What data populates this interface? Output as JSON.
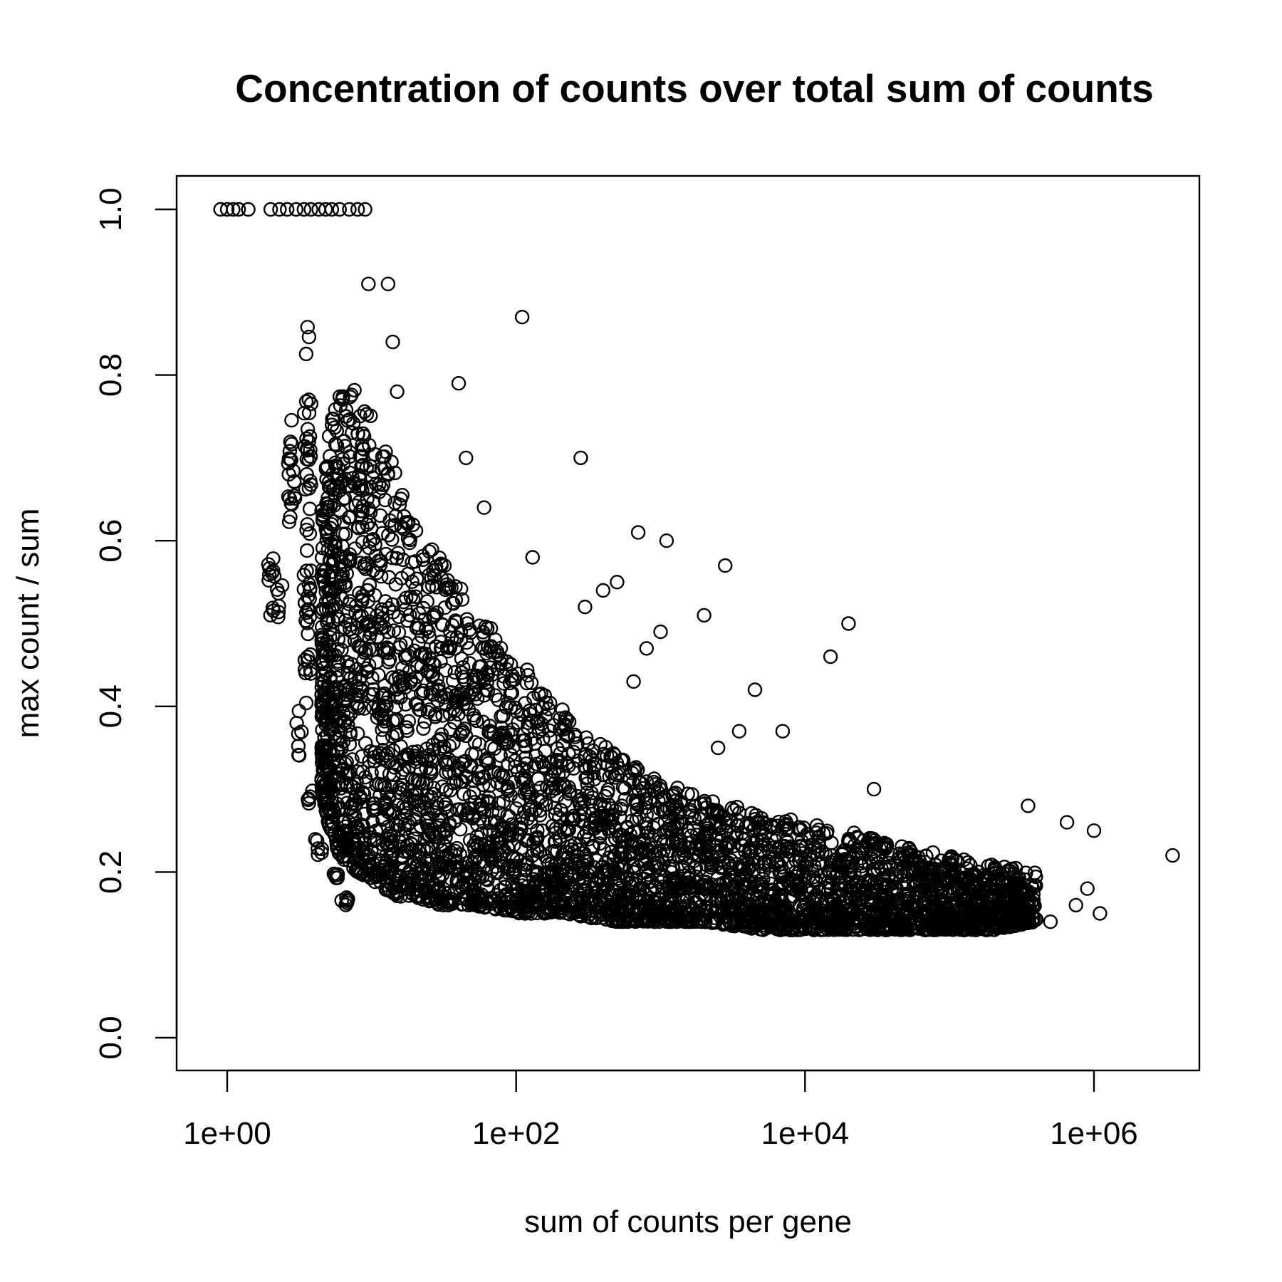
{
  "chart_data": {
    "type": "scatter",
    "title": "Concentration of counts over total sum of counts",
    "xlabel": "sum of counts per gene",
    "ylabel": "max count / sum",
    "x_scale": "log",
    "xlim": [
      0.5,
      5000000
    ],
    "ylim": [
      0,
      1
    ],
    "x_ticks": [
      1,
      100,
      10000,
      1000000
    ],
    "x_tick_labels": [
      "1e+00",
      "1e+02",
      "1e+04",
      "1e+06"
    ],
    "y_ticks": [
      0,
      0.2,
      0.4,
      0.6,
      0.8,
      1.0
    ],
    "y_tick_labels": [
      "0.0",
      "0.2",
      "0.4",
      "0.6",
      "0.8",
      "1.0"
    ],
    "grid": false,
    "legend": "none",
    "marker": "open-circle",
    "point_color": "#000000",
    "points_at_one": [
      [
        0.9,
        1.0
      ],
      [
        1.0,
        1.0
      ],
      [
        1.1,
        1.0
      ],
      [
        1.2,
        1.0
      ],
      [
        1.4,
        1.0
      ],
      [
        2.0,
        1.0
      ],
      [
        2.3,
        1.0
      ],
      [
        2.6,
        1.0
      ],
      [
        3.0,
        1.0
      ],
      [
        3.4,
        1.0
      ],
      [
        3.8,
        1.0
      ],
      [
        4.3,
        1.0
      ],
      [
        4.8,
        1.0
      ],
      [
        5.3,
        1.0
      ],
      [
        6.0,
        1.0
      ],
      [
        7.0,
        1.0
      ],
      [
        8.0,
        1.0
      ],
      [
        9.0,
        1.0
      ]
    ],
    "outliers": [
      [
        9.5,
        0.91
      ],
      [
        13,
        0.91
      ],
      [
        110,
        0.87
      ],
      [
        14,
        0.84
      ],
      [
        15,
        0.78
      ],
      [
        40,
        0.79
      ],
      [
        45,
        0.7
      ],
      [
        280,
        0.7
      ],
      [
        60,
        0.64
      ],
      [
        700,
        0.61
      ],
      [
        1100,
        0.6
      ],
      [
        2800,
        0.57
      ],
      [
        130,
        0.58
      ],
      [
        500,
        0.55
      ],
      [
        400,
        0.54
      ],
      [
        300,
        0.52
      ],
      [
        2000,
        0.51
      ],
      [
        20000,
        0.5
      ],
      [
        1000,
        0.49
      ],
      [
        15000,
        0.46
      ],
      [
        800,
        0.47
      ],
      [
        4500,
        0.42
      ],
      [
        650,
        0.43
      ],
      [
        3500,
        0.37
      ],
      [
        7000,
        0.37
      ],
      [
        2500,
        0.35
      ],
      [
        30000,
        0.3
      ],
      [
        350000,
        0.28
      ],
      [
        650000,
        0.26
      ],
      [
        1000000,
        0.25
      ],
      [
        1100000,
        0.15
      ],
      [
        3500000,
        0.22
      ],
      [
        750000,
        0.16
      ],
      [
        900000,
        0.18
      ],
      [
        500000,
        0.14
      ]
    ],
    "bands": [
      {
        "x": 2.0,
        "y_min": 0.5,
        "y_max": 0.59
      },
      {
        "x": 2.3,
        "y_min": 0.5,
        "y_max": 0.55
      },
      {
        "x": 2.8,
        "y_min": 0.58,
        "y_max": 0.75
      },
      {
        "x": 3.1,
        "y_min": 0.34,
        "y_max": 0.4
      },
      {
        "x": 3.6,
        "y_min": 0.4,
        "y_max": 0.86
      },
      {
        "x": 3.7,
        "y_min": 0.27,
        "y_max": 0.3
      },
      {
        "x": 4.3,
        "y_min": 0.22,
        "y_max": 0.24
      },
      {
        "x": 5.5,
        "y_min": 0.19,
        "y_max": 0.2
      },
      {
        "x": 6.5,
        "y_min": 0.16,
        "y_max": 0.17
      }
    ],
    "cloud": [
      [
        4.5,
        0.3,
        0.65
      ],
      [
        5,
        0.26,
        0.72
      ],
      [
        6,
        0.22,
        0.8
      ],
      [
        8,
        0.2,
        0.8
      ],
      [
        10,
        0.19,
        0.75
      ],
      [
        15,
        0.17,
        0.68
      ],
      [
        20,
        0.17,
        0.62
      ],
      [
        30,
        0.16,
        0.58
      ],
      [
        50,
        0.16,
        0.52
      ],
      [
        100,
        0.15,
        0.46
      ],
      [
        200,
        0.15,
        0.4
      ],
      [
        500,
        0.14,
        0.34
      ],
      [
        1000,
        0.14,
        0.31
      ],
      [
        2000,
        0.14,
        0.29
      ],
      [
        5000,
        0.13,
        0.27
      ],
      [
        10000,
        0.13,
        0.26
      ],
      [
        20000,
        0.13,
        0.25
      ],
      [
        50000,
        0.13,
        0.23
      ],
      [
        100000,
        0.13,
        0.22
      ],
      [
        200000,
        0.13,
        0.21
      ],
      [
        400000,
        0.14,
        0.2
      ]
    ]
  }
}
